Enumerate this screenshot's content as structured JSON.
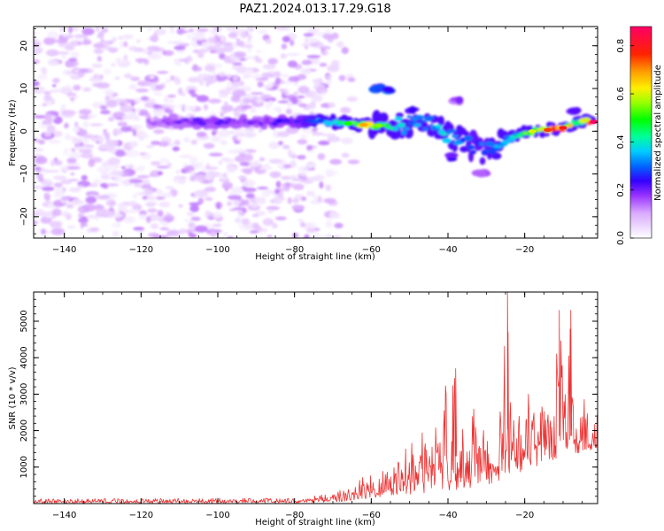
{
  "figure": {
    "title": "PAZ1.2024.013.17.29.G18"
  },
  "chart_data": [
    {
      "type": "heatmap",
      "xlabel": "Height of straight line (km)",
      "ylabel": "Frequency (Hz)",
      "xlim": [
        -148,
        -1
      ],
      "ylim": [
        -25,
        24.5
      ],
      "xticks": [
        -140,
        -120,
        -100,
        -80,
        -60,
        -40,
        -20
      ],
      "yticks": [
        -20,
        -10,
        0,
        10,
        20
      ],
      "colorbar": {
        "label": "Normalized spectral amplitude",
        "range": [
          0,
          0.88
        ],
        "ticks": [
          0.0,
          0.2,
          0.4,
          0.6,
          0.8
        ],
        "colormap": "gist_rainbow_r"
      },
      "features": {
        "diffuse_noise_region_km": [
          -148,
          -72
        ],
        "noise_peak_amplitude": 0.12,
        "signal_ridge": [
          {
            "x": -118,
            "y": 2.2,
            "value": 0.15
          },
          {
            "x": -110,
            "y": 2.2,
            "value": 0.2
          },
          {
            "x": -100,
            "y": 2.3,
            "value": 0.22
          },
          {
            "x": -90,
            "y": 2.2,
            "value": 0.2
          },
          {
            "x": -80,
            "y": 2.1,
            "value": 0.25
          },
          {
            "x": -72,
            "y": 2.3,
            "value": 0.35
          },
          {
            "x": -66,
            "y": 1.8,
            "value": 0.5
          },
          {
            "x": -62,
            "y": 1.5,
            "value": 0.68
          },
          {
            "x": -58,
            "y": 1.3,
            "value": 0.55
          },
          {
            "x": -52,
            "y": 1.5,
            "value": 0.4
          },
          {
            "x": -46,
            "y": 2.5,
            "value": 0.35
          },
          {
            "x": -42,
            "y": 0.5,
            "value": 0.4
          },
          {
            "x": -38,
            "y": -1.5,
            "value": 0.35
          },
          {
            "x": -34,
            "y": -3.5,
            "value": 0.3
          },
          {
            "x": -30,
            "y": -5.0,
            "value": 0.3
          },
          {
            "x": -26,
            "y": -2.8,
            "value": 0.35
          },
          {
            "x": -22,
            "y": -0.8,
            "value": 0.4
          },
          {
            "x": -18,
            "y": 0.0,
            "value": 0.6
          },
          {
            "x": -14,
            "y": 0.3,
            "value": 0.75
          },
          {
            "x": -10,
            "y": 0.8,
            "value": 0.8
          },
          {
            "x": -6,
            "y": 2.5,
            "value": 0.45
          },
          {
            "x": -2,
            "y": 2.2,
            "value": 0.88
          }
        ],
        "side_blobs": [
          {
            "x": -58,
            "y": 10,
            "value": 0.3
          },
          {
            "x": -56,
            "y": 9.5,
            "value": 0.35
          },
          {
            "x": -50,
            "y": 5,
            "value": 0.25
          },
          {
            "x": -40,
            "y": -6,
            "value": 0.25
          },
          {
            "x": -31,
            "y": -10,
            "value": 0.2
          },
          {
            "x": -38,
            "y": 7,
            "value": 0.2
          },
          {
            "x": -7,
            "y": 5,
            "value": 0.3
          }
        ]
      }
    },
    {
      "type": "line",
      "xlabel": "Height of straight line (km)",
      "ylabel": "SNR (10 * v/v)",
      "xlim": [
        -148,
        -1
      ],
      "ylim": [
        0,
        5800
      ],
      "xticks": [
        -140,
        -120,
        -100,
        -80,
        -60,
        -40,
        -20
      ],
      "yticks": [
        1000,
        2000,
        3000,
        4000,
        5000
      ],
      "color": "#ee3333",
      "envelope": {
        "x": [
          -148,
          -80,
          -72,
          -66,
          -62,
          -58,
          -54,
          -50,
          -47,
          -44,
          -41,
          -38,
          -35,
          -32,
          -29,
          -26,
          -24.5,
          -23,
          -21,
          -19,
          -17,
          -15,
          -13,
          -11,
          -9,
          -8,
          -6,
          -4,
          -2,
          -1
        ],
        "y": [
          130,
          150,
          250,
          480,
          750,
          900,
          1100,
          1700,
          2300,
          2900,
          3200,
          3700,
          2200,
          3200,
          1500,
          3100,
          5800,
          2400,
          2500,
          3700,
          2000,
          3000,
          2500,
          5600,
          4200,
          5300,
          2100,
          3100,
          2000,
          2800
        ]
      },
      "noise_floor": {
        "x": [
          -148,
          -80,
          -70,
          -65,
          -60,
          -55,
          -50,
          -45,
          -40,
          -35,
          -30,
          -25,
          -20,
          -15,
          -10,
          -5,
          -1
        ],
        "y": [
          20,
          20,
          40,
          80,
          150,
          200,
          250,
          300,
          350,
          400,
          500,
          700,
          900,
          1100,
          1300,
          1400,
          1500
        ]
      }
    }
  ]
}
